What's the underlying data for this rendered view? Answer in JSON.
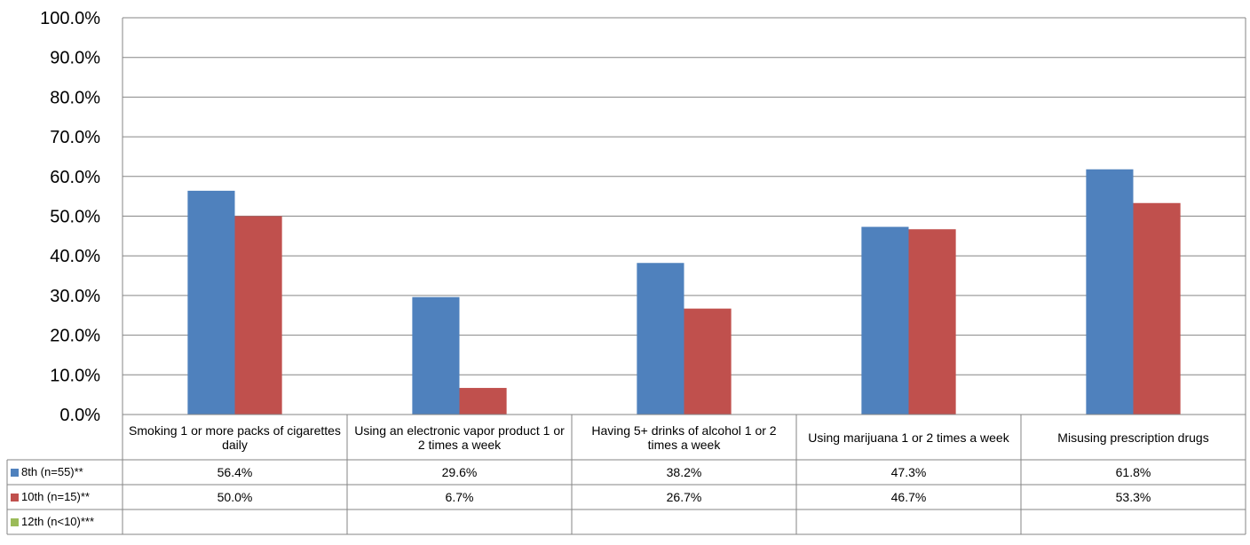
{
  "chart_data": {
    "type": "bar",
    "categories": [
      "Smoking 1 or more packs of cigarettes daily",
      "Using an electronic vapor product 1 or 2 times a week",
      "Having 5+ drinks of alcohol 1 or 2 times a week",
      "Using marijuana 1 or 2 times a week",
      "Misusing prescription drugs"
    ],
    "series": [
      {
        "name": "8th (n=55)**",
        "color": "#4f81bd",
        "values": [
          56.4,
          29.6,
          38.2,
          47.3,
          61.8
        ],
        "labels": [
          "56.4%",
          "29.6%",
          "38.2%",
          "47.3%",
          "61.8%"
        ]
      },
      {
        "name": "10th (n=15)**",
        "color": "#c0504d",
        "values": [
          50.0,
          6.7,
          26.7,
          46.7,
          53.3
        ],
        "labels": [
          "50.0%",
          "6.7%",
          "26.7%",
          "46.7%",
          "53.3%"
        ]
      },
      {
        "name": "12th (n<10)***",
        "color": "#9bbb59",
        "values": [
          null,
          null,
          null,
          null,
          null
        ],
        "labels": [
          "",
          "",
          "",
          "",
          ""
        ]
      }
    ],
    "ylim": [
      0,
      100
    ],
    "yticks": [
      "0.0%",
      "10.0%",
      "20.0%",
      "30.0%",
      "40.0%",
      "50.0%",
      "60.0%",
      "70.0%",
      "80.0%",
      "90.0%",
      "100.0%"
    ],
    "grid": true,
    "legend": "data-table"
  }
}
